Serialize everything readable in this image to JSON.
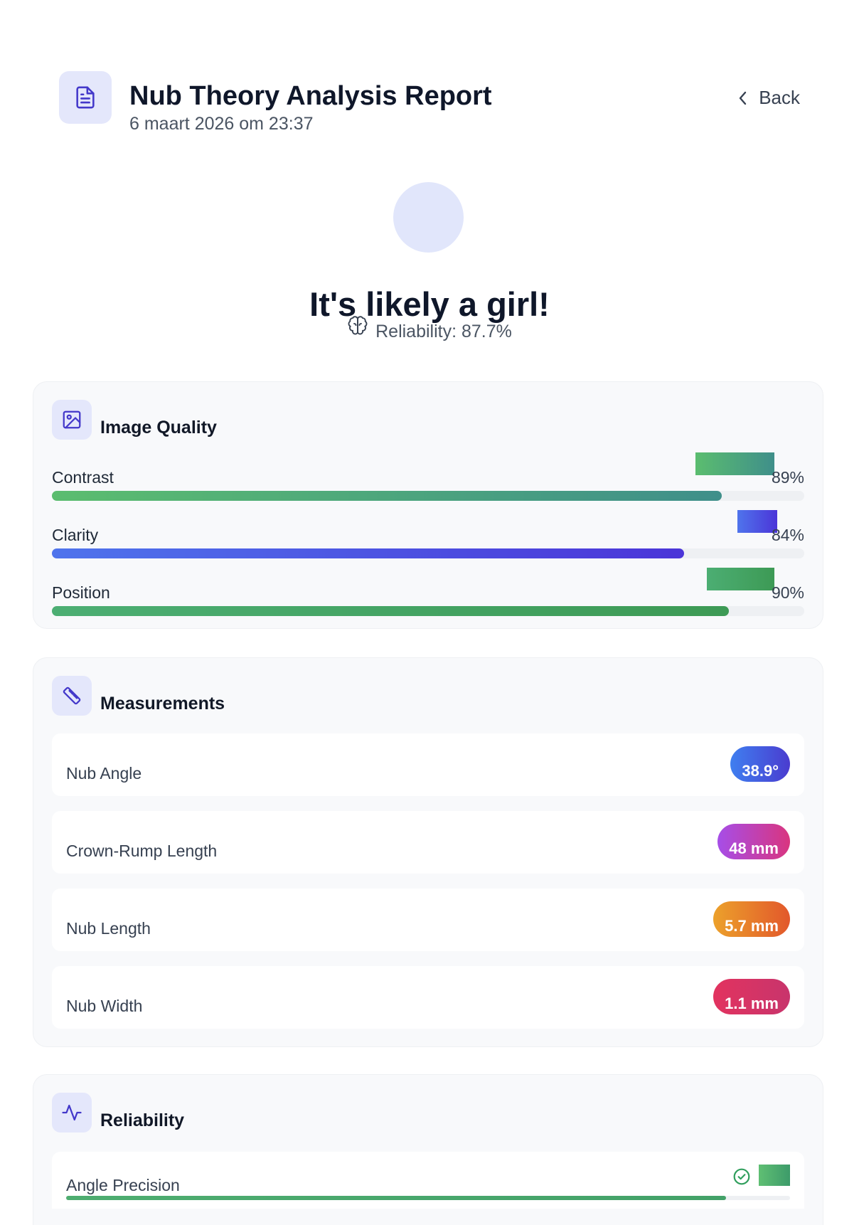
{
  "header": {
    "title": "Nub Theory Analysis Report",
    "date": "6 maart 2026 om 23:37",
    "back_label": "Back"
  },
  "result": {
    "title": "It's likely a girl!",
    "reliability_text": "Reliability: 87.7%"
  },
  "image_quality": {
    "title": "Image Quality",
    "items": [
      {
        "label": "Contrast",
        "value_text": "89%",
        "value": 89,
        "colors": [
          "#5bbd6f",
          "#3f8f8a"
        ]
      },
      {
        "label": "Clarity",
        "value_text": "84%",
        "value": 84,
        "colors": [
          "#4f74ec",
          "#4b35d8"
        ]
      },
      {
        "label": "Position",
        "value_text": "90%",
        "value": 90,
        "colors": [
          "#4cae73",
          "#3d9a55"
        ]
      }
    ]
  },
  "measurements": {
    "title": "Measurements",
    "items": [
      {
        "label": "Nub Angle",
        "value": "38.9°",
        "colors": [
          "#3f7ff0",
          "#4a3ccf"
        ]
      },
      {
        "label": "Crown-Rump Length",
        "value": "48 mm",
        "colors": [
          "#a64ee8",
          "#d9357f"
        ]
      },
      {
        "label": "Nub Length",
        "value": "5.7 mm",
        "colors": [
          "#eca12b",
          "#e2582b"
        ]
      },
      {
        "label": "Nub Width",
        "value": "1.1 mm",
        "colors": [
          "#e2335f",
          "#c8346c"
        ]
      }
    ]
  },
  "reliability": {
    "title": "Reliability",
    "items": [
      {
        "label": "Angle Precision"
      }
    ]
  }
}
